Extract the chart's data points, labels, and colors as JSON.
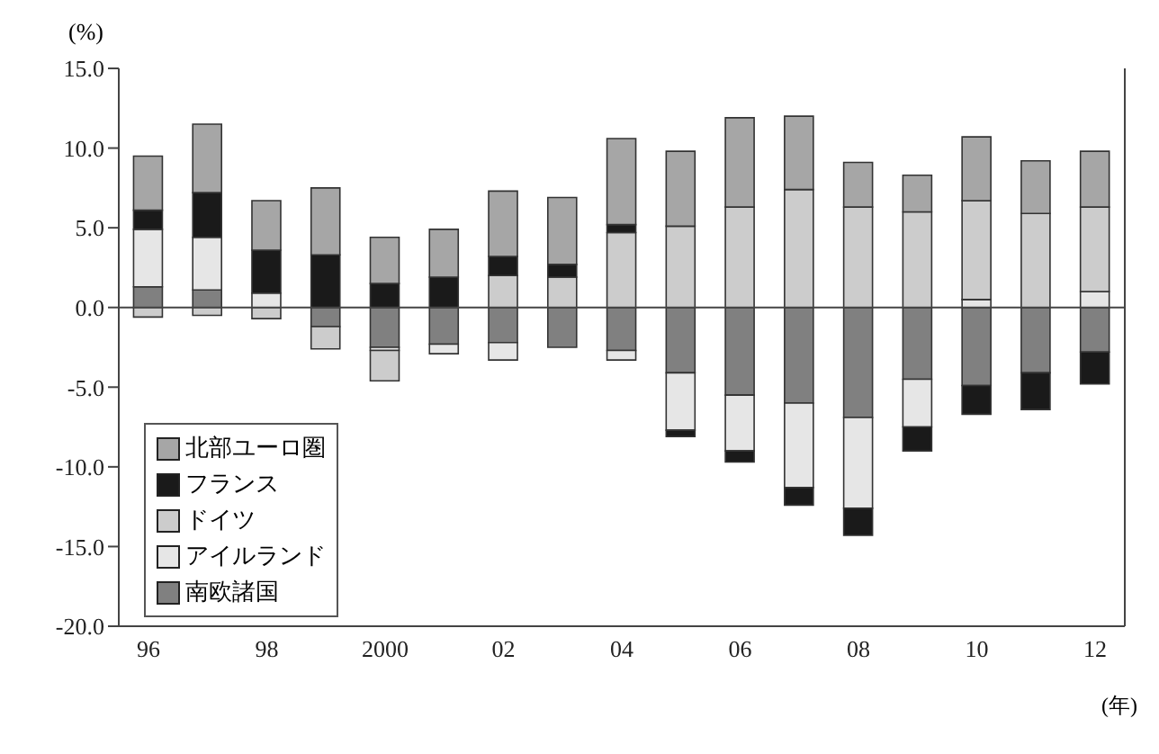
{
  "chart_data": {
    "type": "bar",
    "stacked": true,
    "ylabel": "(%)",
    "xlabel": "(年)",
    "categories": [
      "96",
      null,
      "98",
      null,
      "2000",
      null,
      "02",
      null,
      "04",
      null,
      "06",
      null,
      "08",
      null,
      "10",
      null,
      "12"
    ],
    "series": [
      {
        "name": "南欧諸国",
        "color": "#808080",
        "values": [
          1.3,
          1.1,
          null,
          -1.2,
          -2.5,
          -2.3,
          -2.2,
          -2.5,
          -2.7,
          -4.1,
          -5.5,
          -6.0,
          -6.9,
          -4.5,
          -4.9,
          -4.1,
          -2.8
        ]
      },
      {
        "name": "アイルランド",
        "color": "#e6e6e6",
        "values": [
          3.6,
          3.3,
          0.9,
          null,
          -0.2,
          -0.6,
          -1.1,
          null,
          -0.6,
          -3.6,
          -3.5,
          -5.3,
          -5.7,
          -3.0,
          0.5,
          null,
          1.0
        ]
      },
      {
        "name": "ドイツ",
        "color": "#cccccc",
        "values": [
          -0.6,
          -0.5,
          -0.7,
          -1.4,
          -1.9,
          null,
          2.0,
          1.9,
          4.7,
          5.1,
          6.3,
          7.4,
          6.3,
          6.0,
          6.2,
          5.9,
          5.3
        ]
      },
      {
        "name": "フランス",
        "color": "#1a1a1a",
        "values": [
          1.2,
          2.8,
          2.7,
          3.3,
          1.5,
          1.9,
          1.2,
          0.8,
          0.5,
          -0.4,
          -0.7,
          -1.1,
          -1.7,
          -1.5,
          -1.8,
          -2.3,
          -2.0
        ]
      },
      {
        "name": "北部ユーロ圏",
        "color": "#a6a6a6",
        "values": [
          3.4,
          4.3,
          3.1,
          4.2,
          2.9,
          3.0,
          4.1,
          4.2,
          5.4,
          4.7,
          5.6,
          4.6,
          2.8,
          2.3,
          4.0,
          3.3,
          3.5
        ]
      }
    ],
    "ylim": [
      -20,
      15
    ],
    "yticks": [
      {
        "value": -20,
        "label": "-20.0"
      },
      {
        "value": -15,
        "label": "-15.0"
      },
      {
        "value": -10,
        "label": "-10.0"
      },
      {
        "value": -5,
        "label": "-5.0"
      },
      {
        "value": 0,
        "label": "0.0"
      },
      {
        "value": 5,
        "label": "5.0"
      },
      {
        "value": 10,
        "label": "10.0"
      },
      {
        "value": 15,
        "label": "15.0"
      }
    ],
    "ref_lines": [
      {
        "axis": "y",
        "value": 0
      }
    ],
    "legend": "bottom left"
  }
}
